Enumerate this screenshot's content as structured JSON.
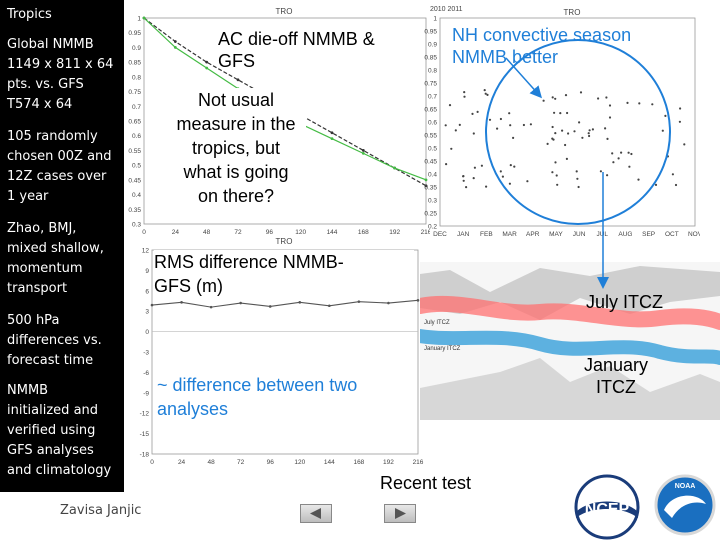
{
  "sidebar": {
    "title": "Tropics",
    "model": "Global NMMB\n1149 x 811 x 64\npts.  vs. GFS\nT574 x 64",
    "cases": "105 randomly\nchosen 00Z and\n12Z cases over\n1 year",
    "physics": "Zhao, BMJ,\nmixed shallow,\nmomentum\ntransport",
    "differences": "500 hPa\ndifferences vs.\nforecast time",
    "verification": "NMMB\ninitialized and\nverified using\nGFS analyses\nand climatology"
  },
  "author": "Zavisa Janjic",
  "callouts": {
    "ac_dieoff": "AC die-off NMMB &\nGFS",
    "not_usual": "Not usual\nmeasure in the\ntropics, but\nwhat is going\non there?",
    "nh_convective": "NH convective season\nNMMB better",
    "rms_difference": "RMS difference NMMB-\nGFS (m)",
    "difference_analyses": "~ difference between two\nanalyses",
    "july_itcz": "July ITCZ",
    "january_itcz": "January\nITCZ",
    "recent_test": "Recent test"
  },
  "map_labels": {
    "july": "July ITCZ",
    "january": "January ITCZ"
  },
  "logos": {
    "ncep": "NCEP",
    "noaa": "NOAA"
  },
  "colors": {
    "green_series": "#44bb44",
    "black_series": "#333333",
    "callout_blue": "#1f7fd8",
    "itcz_july": "#ff7070",
    "itcz_january": "#2a9ad8"
  },
  "chart_data": [
    {
      "type": "line",
      "title": "TRO",
      "x": [
        0,
        24,
        48,
        72,
        96,
        120,
        144,
        168,
        192,
        216
      ],
      "ylim": [
        0.3,
        1
      ],
      "y_ticks": [
        "0.3",
        "0.35",
        "0.4",
        "0.45",
        "0.5",
        "0.55",
        "0.6",
        "0.65",
        "0.7",
        "0.75",
        "0.8",
        "0.85",
        "0.9",
        "0.95",
        "1"
      ],
      "x_ticks": [
        "0",
        "24",
        "48",
        "72",
        "96",
        "120",
        "144",
        "168",
        "192",
        "216"
      ],
      "series": [
        {
          "values": [
            1.0,
            0.92,
            0.85,
            0.79,
            0.73,
            0.67,
            0.61,
            0.55,
            0.49,
            0.43
          ]
        },
        {
          "values": [
            1.0,
            0.9,
            0.83,
            0.76,
            0.7,
            0.64,
            0.59,
            0.54,
            0.49,
            0.45
          ]
        }
      ]
    },
    {
      "type": "scatter",
      "title": "TRO",
      "header": "2010 2011",
      "y_ticks": [
        "1",
        "0.95",
        "0.9",
        "0.85",
        "0.8",
        "0.75",
        "0.7",
        "0.65",
        "0.6",
        "0.55",
        "0.5",
        "0.45",
        "0.4",
        "0.35",
        "0.3",
        "0.25",
        "0.2"
      ],
      "x_ticks": [
        "DEC",
        "JAN",
        "FEB",
        "MAR",
        "APR",
        "MAY",
        "JUN",
        "JUL",
        "AUG",
        "SEP",
        "OCT",
        "NOV"
      ]
    },
    {
      "type": "line",
      "title": "TRO",
      "x": [
        0,
        24,
        48,
        72,
        96,
        120,
        144,
        168,
        192,
        216
      ],
      "ylim": [
        -18,
        12
      ],
      "y_ticks": [
        "12",
        "9",
        "6",
        "3",
        "0",
        "-3",
        "-6",
        "-9",
        "-12",
        "-15",
        "-18"
      ],
      "x_ticks": [
        "0",
        "24",
        "48",
        "72",
        "96",
        "120",
        "144",
        "168",
        "192",
        "216"
      ],
      "series": [
        {
          "values": [
            3.9,
            4.3,
            3.6,
            4.2,
            3.7,
            4.3,
            3.8,
            4.4,
            4.2,
            4.6
          ]
        }
      ]
    }
  ]
}
